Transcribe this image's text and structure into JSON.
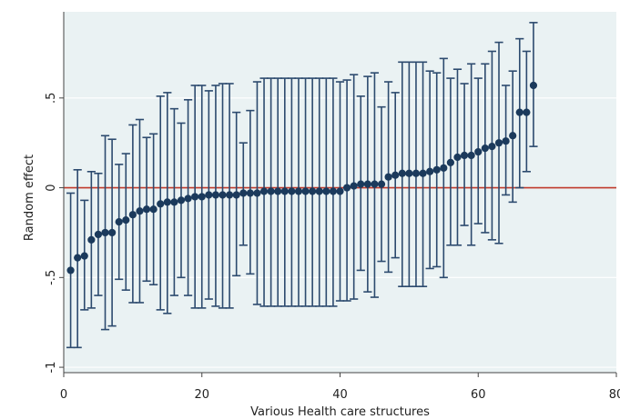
{
  "chart_data": {
    "type": "scatter",
    "xlabel": "Various Health care structures",
    "ylabel": "Random effect",
    "xlim": [
      0,
      80
    ],
    "ylim": [
      -1.03,
      0.98
    ],
    "x_ticks": [
      0,
      20,
      40,
      60,
      80
    ],
    "x_tick_labels": [
      "0",
      "20",
      "40",
      "60",
      "80"
    ],
    "y_ticks": [
      -1,
      -0.5,
      0,
      0.5
    ],
    "y_tick_labels": [
      "-1",
      "-.5",
      "0",
      ".5"
    ],
    "grid": "horizontal",
    "reference_line": {
      "y": 0,
      "color": "#c0392b"
    },
    "colors": {
      "point": "#1b3a5c",
      "ci": "#2c4a6e",
      "plot_background": "#eaf2f3",
      "outer_background": "#ffffff"
    },
    "points": [
      {
        "x": 1,
        "y": -0.46,
        "lo": -0.89,
        "hi": -0.03
      },
      {
        "x": 2,
        "y": -0.39,
        "lo": -0.89,
        "hi": 0.1
      },
      {
        "x": 3,
        "y": -0.38,
        "lo": -0.68,
        "hi": -0.07
      },
      {
        "x": 4,
        "y": -0.29,
        "lo": -0.67,
        "hi": 0.09
      },
      {
        "x": 5,
        "y": -0.26,
        "lo": -0.6,
        "hi": 0.08
      },
      {
        "x": 6,
        "y": -0.25,
        "lo": -0.79,
        "hi": 0.29
      },
      {
        "x": 7,
        "y": -0.25,
        "lo": -0.77,
        "hi": 0.27
      },
      {
        "x": 8,
        "y": -0.19,
        "lo": -0.51,
        "hi": 0.13
      },
      {
        "x": 9,
        "y": -0.18,
        "lo": -0.57,
        "hi": 0.19
      },
      {
        "x": 10,
        "y": -0.15,
        "lo": -0.64,
        "hi": 0.35
      },
      {
        "x": 11,
        "y": -0.13,
        "lo": -0.64,
        "hi": 0.38
      },
      {
        "x": 12,
        "y": -0.12,
        "lo": -0.52,
        "hi": 0.28
      },
      {
        "x": 13,
        "y": -0.12,
        "lo": -0.54,
        "hi": 0.3
      },
      {
        "x": 14,
        "y": -0.09,
        "lo": -0.68,
        "hi": 0.51
      },
      {
        "x": 15,
        "y": -0.08,
        "lo": -0.7,
        "hi": 0.53
      },
      {
        "x": 16,
        "y": -0.08,
        "lo": -0.6,
        "hi": 0.44
      },
      {
        "x": 17,
        "y": -0.07,
        "lo": -0.5,
        "hi": 0.36
      },
      {
        "x": 18,
        "y": -0.06,
        "lo": -0.6,
        "hi": 0.49
      },
      {
        "x": 19,
        "y": -0.05,
        "lo": -0.67,
        "hi": 0.57
      },
      {
        "x": 20,
        "y": -0.05,
        "lo": -0.67,
        "hi": 0.57
      },
      {
        "x": 21,
        "y": -0.04,
        "lo": -0.62,
        "hi": 0.54
      },
      {
        "x": 22,
        "y": -0.04,
        "lo": -0.66,
        "hi": 0.57
      },
      {
        "x": 23,
        "y": -0.04,
        "lo": -0.67,
        "hi": 0.58
      },
      {
        "x": 24,
        "y": -0.04,
        "lo": -0.67,
        "hi": 0.58
      },
      {
        "x": 25,
        "y": -0.04,
        "lo": -0.49,
        "hi": 0.42
      },
      {
        "x": 26,
        "y": -0.03,
        "lo": -0.32,
        "hi": 0.25
      },
      {
        "x": 27,
        "y": -0.03,
        "lo": -0.48,
        "hi": 0.43
      },
      {
        "x": 28,
        "y": -0.03,
        "lo": -0.65,
        "hi": 0.59
      },
      {
        "x": 29,
        "y": -0.02,
        "lo": -0.66,
        "hi": 0.61
      },
      {
        "x": 30,
        "y": -0.02,
        "lo": -0.66,
        "hi": 0.61
      },
      {
        "x": 31,
        "y": -0.02,
        "lo": -0.66,
        "hi": 0.61
      },
      {
        "x": 32,
        "y": -0.02,
        "lo": -0.66,
        "hi": 0.61
      },
      {
        "x": 33,
        "y": -0.02,
        "lo": -0.66,
        "hi": 0.61
      },
      {
        "x": 34,
        "y": -0.02,
        "lo": -0.66,
        "hi": 0.61
      },
      {
        "x": 35,
        "y": -0.02,
        "lo": -0.66,
        "hi": 0.61
      },
      {
        "x": 36,
        "y": -0.02,
        "lo": -0.66,
        "hi": 0.61
      },
      {
        "x": 37,
        "y": -0.02,
        "lo": -0.66,
        "hi": 0.61
      },
      {
        "x": 38,
        "y": -0.02,
        "lo": -0.66,
        "hi": 0.61
      },
      {
        "x": 39,
        "y": -0.02,
        "lo": -0.66,
        "hi": 0.61
      },
      {
        "x": 40,
        "y": -0.02,
        "lo": -0.63,
        "hi": 0.59
      },
      {
        "x": 41,
        "y": 0.0,
        "lo": -0.63,
        "hi": 0.6
      },
      {
        "x": 42,
        "y": 0.01,
        "lo": -0.62,
        "hi": 0.63
      },
      {
        "x": 43,
        "y": 0.02,
        "lo": -0.46,
        "hi": 0.51
      },
      {
        "x": 44,
        "y": 0.02,
        "lo": -0.58,
        "hi": 0.62
      },
      {
        "x": 45,
        "y": 0.02,
        "lo": -0.61,
        "hi": 0.64
      },
      {
        "x": 46,
        "y": 0.02,
        "lo": -0.41,
        "hi": 0.45
      },
      {
        "x": 47,
        "y": 0.06,
        "lo": -0.47,
        "hi": 0.59
      },
      {
        "x": 48,
        "y": 0.07,
        "lo": -0.39,
        "hi": 0.53
      },
      {
        "x": 49,
        "y": 0.08,
        "lo": -0.55,
        "hi": 0.7
      },
      {
        "x": 50,
        "y": 0.08,
        "lo": -0.55,
        "hi": 0.7
      },
      {
        "x": 51,
        "y": 0.08,
        "lo": -0.55,
        "hi": 0.7
      },
      {
        "x": 52,
        "y": 0.08,
        "lo": -0.55,
        "hi": 0.7
      },
      {
        "x": 53,
        "y": 0.09,
        "lo": -0.45,
        "hi": 0.65
      },
      {
        "x": 54,
        "y": 0.1,
        "lo": -0.44,
        "hi": 0.64
      },
      {
        "x": 55,
        "y": 0.11,
        "lo": -0.5,
        "hi": 0.72
      },
      {
        "x": 56,
        "y": 0.14,
        "lo": -0.32,
        "hi": 0.61
      },
      {
        "x": 57,
        "y": 0.17,
        "lo": -0.32,
        "hi": 0.66
      },
      {
        "x": 58,
        "y": 0.18,
        "lo": -0.21,
        "hi": 0.58
      },
      {
        "x": 59,
        "y": 0.18,
        "lo": -0.32,
        "hi": 0.69
      },
      {
        "x": 60,
        "y": 0.2,
        "lo": -0.2,
        "hi": 0.61
      },
      {
        "x": 61,
        "y": 0.22,
        "lo": -0.25,
        "hi": 0.69
      },
      {
        "x": 62,
        "y": 0.23,
        "lo": -0.29,
        "hi": 0.76
      },
      {
        "x": 63,
        "y": 0.25,
        "lo": -0.31,
        "hi": 0.81
      },
      {
        "x": 64,
        "y": 0.26,
        "lo": -0.04,
        "hi": 0.57
      },
      {
        "x": 65,
        "y": 0.29,
        "lo": -0.08,
        "hi": 0.65
      },
      {
        "x": 66,
        "y": 0.42,
        "lo": 0.0,
        "hi": 0.83
      },
      {
        "x": 67,
        "y": 0.42,
        "lo": 0.09,
        "hi": 0.76
      },
      {
        "x": 68,
        "y": 0.57,
        "lo": 0.23,
        "hi": 0.92
      }
    ]
  }
}
